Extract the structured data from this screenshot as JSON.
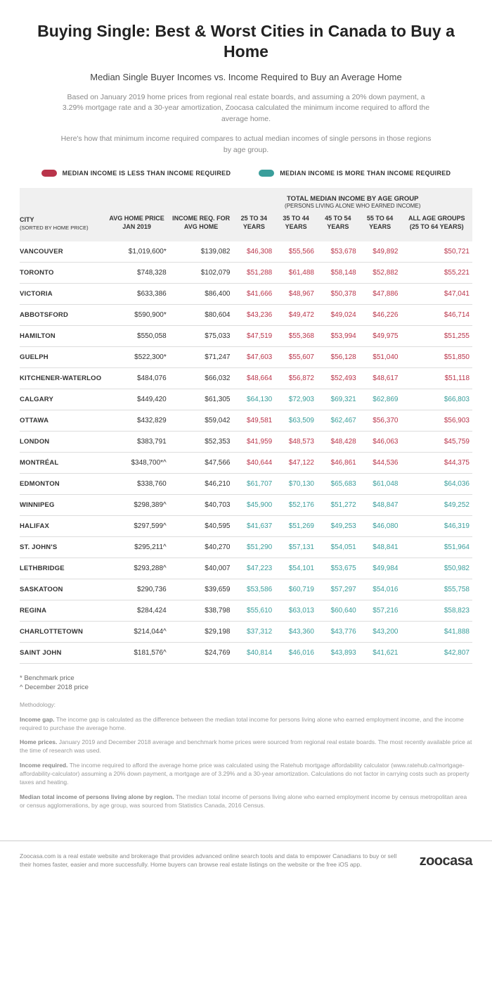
{
  "title": "Buying Single: Best & Worst Cities in Canada to Buy a Home",
  "subtitle": "Median Single Buyer Incomes vs. Income Required to Buy an Average Home",
  "intro1": "Based on January 2019 home prices from regional real estate boards, and assuming a 20% down payment, a 3.29% mortgage rate and a 30-year amortization, Zoocasa calculated the minimum income required to afford the average home.",
  "intro2": "Here's how that minimum income required compares to actual median incomes of single persons in those regions by age group.",
  "legend": {
    "less": "MEDIAN INCOME IS LESS THAN INCOME REQUIRED",
    "more": "MEDIAN INCOME IS MORE THAN INCOME REQUIRED",
    "less_color": "#b9344a",
    "more_color": "#3a9e9b"
  },
  "table": {
    "group_header": "TOTAL MEDIAN INCOME BY AGE GROUP",
    "group_sub": "(PERSONS LIVING ALONE WHO EARNED INCOME)",
    "columns": {
      "city": "CITY",
      "city_sub": "(SORTED BY HOME PRICE)",
      "price": "AVG HOME PRICE JAN 2019",
      "income_req": "INCOME REQ. FOR AVG HOME",
      "age1": "25 TO 34 YEARS",
      "age2": "35 TO 44 YEARS",
      "age3": "45 TO 54 YEARS",
      "age4": "55 TO 64 YEARS",
      "all": "ALL AGE GROUPS (25 TO 64 YEARS)"
    },
    "rows": [
      {
        "city": "VANCOUVER",
        "price": "$1,019,600*",
        "req": "$139,082",
        "v": [
          [
            "$46,308",
            "r"
          ],
          [
            "$55,566",
            "r"
          ],
          [
            "$53,678",
            "r"
          ],
          [
            "$49,892",
            "r"
          ],
          [
            "$50,721",
            "r"
          ]
        ]
      },
      {
        "city": "TORONTO",
        "price": "$748,328",
        "req": "$102,079",
        "v": [
          [
            "$51,288",
            "r"
          ],
          [
            "$61,488",
            "r"
          ],
          [
            "$58,148",
            "r"
          ],
          [
            "$52,882",
            "r"
          ],
          [
            "$55,221",
            "r"
          ]
        ]
      },
      {
        "city": "VICTORIA",
        "price": "$633,386",
        "req": "$86,400",
        "v": [
          [
            "$41,666",
            "r"
          ],
          [
            "$48,967",
            "r"
          ],
          [
            "$50,378",
            "r"
          ],
          [
            "$47,886",
            "r"
          ],
          [
            "$47,041",
            "r"
          ]
        ]
      },
      {
        "city": "ABBOTSFORD",
        "price": "$590,900*",
        "req": "$80,604",
        "v": [
          [
            "$43,236",
            "r"
          ],
          [
            "$49,472",
            "r"
          ],
          [
            "$49,024",
            "r"
          ],
          [
            "$46,226",
            "r"
          ],
          [
            "$46,714",
            "r"
          ]
        ]
      },
      {
        "city": "HAMILTON",
        "price": "$550,058",
        "req": "$75,033",
        "v": [
          [
            "$47,519",
            "r"
          ],
          [
            "$55,368",
            "r"
          ],
          [
            "$53,994",
            "r"
          ],
          [
            "$49,975",
            "r"
          ],
          [
            "$51,255",
            "r"
          ]
        ]
      },
      {
        "city": "GUELPH",
        "price": "$522,300*",
        "req": "$71,247",
        "v": [
          [
            "$47,603",
            "r"
          ],
          [
            "$55,607",
            "r"
          ],
          [
            "$56,128",
            "r"
          ],
          [
            "$51,040",
            "r"
          ],
          [
            "$51,850",
            "r"
          ]
        ]
      },
      {
        "city": "KITCHENER-WATERLOO",
        "price": "$484,076",
        "req": "$66,032",
        "v": [
          [
            "$48,664",
            "r"
          ],
          [
            "$56,872",
            "r"
          ],
          [
            "$52,493",
            "r"
          ],
          [
            "$48,617",
            "r"
          ],
          [
            "$51,118",
            "r"
          ]
        ]
      },
      {
        "city": "CALGARY",
        "price": "$449,420",
        "req": "$61,305",
        "v": [
          [
            "$64,130",
            "t"
          ],
          [
            "$72,903",
            "t"
          ],
          [
            "$69,321",
            "t"
          ],
          [
            "$62,869",
            "t"
          ],
          [
            "$66,803",
            "t"
          ]
        ]
      },
      {
        "city": "OTTAWA",
        "price": "$432,829",
        "req": "$59,042",
        "v": [
          [
            "$49,581",
            "r"
          ],
          [
            "$63,509",
            "t"
          ],
          [
            "$62,467",
            "t"
          ],
          [
            "$56,370",
            "r"
          ],
          [
            "$56,903",
            "r"
          ]
        ]
      },
      {
        "city": "LONDON",
        "price": "$383,791",
        "req": "$52,353",
        "v": [
          [
            "$41,959",
            "r"
          ],
          [
            "$48,573",
            "r"
          ],
          [
            "$48,428",
            "r"
          ],
          [
            "$46,063",
            "r"
          ],
          [
            "$45,759",
            "r"
          ]
        ]
      },
      {
        "city": "MONTRÉAL",
        "price": "$348,700*^",
        "req": "$47,566",
        "v": [
          [
            "$40,644",
            "r"
          ],
          [
            "$47,122",
            "r"
          ],
          [
            "$46,861",
            "r"
          ],
          [
            "$44,536",
            "r"
          ],
          [
            "$44,375",
            "r"
          ]
        ]
      },
      {
        "city": "EDMONTON",
        "price": "$338,760",
        "req": "$46,210",
        "v": [
          [
            "$61,707",
            "t"
          ],
          [
            "$70,130",
            "t"
          ],
          [
            "$65,683",
            "t"
          ],
          [
            "$61,048",
            "t"
          ],
          [
            "$64,036",
            "t"
          ]
        ]
      },
      {
        "city": "WINNIPEG",
        "price": "$298,389^",
        "req": "$40,703",
        "v": [
          [
            "$45,900",
            "t"
          ],
          [
            "$52,176",
            "t"
          ],
          [
            "$51,272",
            "t"
          ],
          [
            "$48,847",
            "t"
          ],
          [
            "$49,252",
            "t"
          ]
        ]
      },
      {
        "city": "HALIFAX",
        "price": "$297,599^",
        "req": "$40,595",
        "v": [
          [
            "$41,637",
            "t"
          ],
          [
            "$51,269",
            "t"
          ],
          [
            "$49,253",
            "t"
          ],
          [
            "$46,080",
            "t"
          ],
          [
            "$46,319",
            "t"
          ]
        ]
      },
      {
        "city": "ST. JOHN'S",
        "price": "$295,211^",
        "req": "$40,270",
        "v": [
          [
            "$51,290",
            "t"
          ],
          [
            "$57,131",
            "t"
          ],
          [
            "$54,051",
            "t"
          ],
          [
            "$48,841",
            "t"
          ],
          [
            "$51,964",
            "t"
          ]
        ]
      },
      {
        "city": "LETHBRIDGE",
        "price": "$293,288^",
        "req": "$40,007",
        "v": [
          [
            "$47,223",
            "t"
          ],
          [
            "$54,101",
            "t"
          ],
          [
            "$53,675",
            "t"
          ],
          [
            "$49,984",
            "t"
          ],
          [
            "$50,982",
            "t"
          ]
        ]
      },
      {
        "city": "SASKATOON",
        "price": "$290,736",
        "req": "$39,659",
        "v": [
          [
            "$53,586",
            "t"
          ],
          [
            "$60,719",
            "t"
          ],
          [
            "$57,297",
            "t"
          ],
          [
            "$54,016",
            "t"
          ],
          [
            "$55,758",
            "t"
          ]
        ]
      },
      {
        "city": "REGINA",
        "price": "$284,424",
        "req": "$38,798",
        "v": [
          [
            "$55,610",
            "t"
          ],
          [
            "$63,013",
            "t"
          ],
          [
            "$60,640",
            "t"
          ],
          [
            "$57,216",
            "t"
          ],
          [
            "$58,823",
            "t"
          ]
        ]
      },
      {
        "city": "CHARLOTTETOWN",
        "price": "$214,044^",
        "req": "$29,198",
        "v": [
          [
            "$37,312",
            "t"
          ],
          [
            "$43,360",
            "t"
          ],
          [
            "$43,776",
            "t"
          ],
          [
            "$43,200",
            "t"
          ],
          [
            "$41,888",
            "t"
          ]
        ]
      },
      {
        "city": "SAINT JOHN",
        "price": "$181,576^",
        "req": "$24,769",
        "v": [
          [
            "$40,814",
            "t"
          ],
          [
            "$46,016",
            "t"
          ],
          [
            "$43,893",
            "t"
          ],
          [
            "$41,621",
            "t"
          ],
          [
            "$42,807",
            "t"
          ]
        ]
      }
    ]
  },
  "footnotes": {
    "star": "* Benchmark price",
    "caret": "^ December 2018 price"
  },
  "methodology": {
    "heading": "Methodology:",
    "p1_label": "Income gap.",
    "p1": " The income gap is calculated as the difference between the median total income for persons living alone who earned employment income, and the income required to purchase the average home.",
    "p2_label": "Home prices.",
    "p2": " January 2019 and December 2018 average and benchmark home prices were sourced from regional real estate boards. The most recently available price at the time of research was used.",
    "p3_label": "Income required.",
    "p3": " The income required to afford the average home price was calculated using the Ratehub mortgage affordability calculator (www.ratehub.ca/mortgage-affordability-calculator) assuming a 20% down payment, a mortgage are of 3.29% and a 30-year amortization. Calculations do not factor in carrying costs such as property taxes and heating.",
    "p4_label": "Median total income of persons living alone by region.",
    "p4": " The median total income of persons living alone who earned employment income by census metropolitan area or census agglomerations, by age group, was sourced from Statistics Canada, 2016 Census."
  },
  "footer": {
    "text": "Zoocasa.com is a real estate website and brokerage that provides advanced online search tools and data to empower Canadians to buy or sell their homes faster, easier and more successfully. Home buyers can browse real estate listings on the website or the free iOS app.",
    "logo": "zoocasa"
  }
}
